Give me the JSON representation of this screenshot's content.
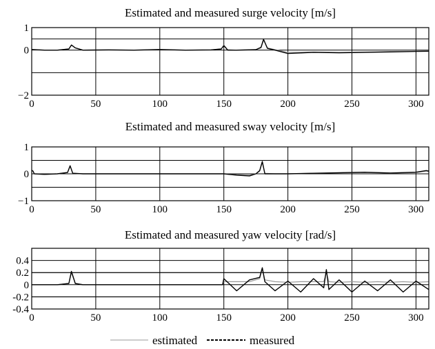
{
  "chart_data": [
    {
      "type": "line",
      "title": "Estimated and measured surge velocity [m/s]",
      "xlim": [
        0,
        310
      ],
      "ylim": [
        -2,
        1
      ],
      "x_ticks": [
        0,
        50,
        100,
        150,
        200,
        250,
        300
      ],
      "y_tick_labels": [
        "1",
        "0",
        "−2"
      ],
      "y_tick_values": [
        1,
        0,
        -2
      ],
      "grid_y": [
        0.5,
        -1
      ],
      "grid": true,
      "series": [
        {
          "name": "estimated",
          "color": "#9a9a9a",
          "x": [
            0,
            10,
            20,
            29,
            31,
            34,
            40,
            60,
            80,
            100,
            120,
            140,
            148,
            150,
            153,
            160,
            175,
            179,
            181,
            184,
            190,
            200,
            220,
            240,
            260,
            280,
            300,
            310
          ],
          "y": [
            0.02,
            0.0,
            0.0,
            0.05,
            0.22,
            0.1,
            0.0,
            0.01,
            0.0,
            0.02,
            0.0,
            0.01,
            0.05,
            0.22,
            0.02,
            0.0,
            0.02,
            0.1,
            0.45,
            0.1,
            0.02,
            -0.1,
            -0.08,
            -0.1,
            -0.08,
            -0.06,
            -0.05,
            -0.04
          ]
        },
        {
          "name": "measured",
          "color": "#000000",
          "x": [
            0,
            10,
            20,
            29,
            31,
            34,
            40,
            60,
            80,
            100,
            120,
            140,
            148,
            150,
            153,
            160,
            175,
            179,
            181,
            184,
            190,
            200,
            220,
            240,
            260,
            280,
            300,
            310
          ],
          "y": [
            0.03,
            0.0,
            0.0,
            0.05,
            0.23,
            0.1,
            0.0,
            0.01,
            0.0,
            0.03,
            0.0,
            0.01,
            0.05,
            0.2,
            0.0,
            0.0,
            0.02,
            0.12,
            0.48,
            0.08,
            0.0,
            -0.15,
            -0.1,
            -0.12,
            -0.1,
            -0.08,
            -0.06,
            -0.05
          ]
        }
      ]
    },
    {
      "type": "line",
      "title": "Estimated and measured sway velocity [m/s]",
      "xlim": [
        0,
        310
      ],
      "ylim": [
        -1,
        1
      ],
      "x_ticks": [
        0,
        50,
        100,
        150,
        200,
        250,
        300
      ],
      "y_tick_labels": [
        "1",
        "0",
        "−1"
      ],
      "y_tick_values": [
        1,
        0,
        -1
      ],
      "grid_y": [
        0.5,
        -0.5
      ],
      "grid": true,
      "series": [
        {
          "name": "estimated",
          "color": "#9a9a9a",
          "x": [
            0,
            1,
            2,
            10,
            20,
            28,
            30,
            32,
            40,
            60,
            80,
            100,
            120,
            140,
            150,
            160,
            170,
            175,
            178,
            180,
            182,
            190,
            200,
            220,
            240,
            260,
            280,
            300,
            308,
            310
          ],
          "y": [
            0.12,
            0.1,
            0.0,
            -0.02,
            0.0,
            0.05,
            0.28,
            0.02,
            0.0,
            0.0,
            0.0,
            0.0,
            0.0,
            0.0,
            0.0,
            -0.03,
            -0.05,
            0.0,
            0.1,
            0.42,
            0.02,
            0.0,
            0.0,
            0.02,
            0.03,
            0.05,
            0.02,
            0.05,
            0.1,
            0.08
          ]
        },
        {
          "name": "measured",
          "color": "#000000",
          "x": [
            0,
            1,
            2,
            10,
            20,
            28,
            30,
            32,
            40,
            60,
            80,
            100,
            120,
            140,
            150,
            160,
            170,
            175,
            178,
            180,
            182,
            190,
            200,
            220,
            240,
            260,
            280,
            300,
            308,
            310
          ],
          "y": [
            0.13,
            0.1,
            0.0,
            -0.02,
            0.0,
            0.05,
            0.3,
            0.02,
            0.0,
            0.0,
            0.0,
            0.0,
            0.0,
            0.0,
            0.0,
            -0.05,
            -0.08,
            0.0,
            0.12,
            0.46,
            0.0,
            0.0,
            0.0,
            0.02,
            0.04,
            0.06,
            0.03,
            0.06,
            0.12,
            0.1
          ]
        }
      ]
    },
    {
      "type": "line",
      "title": "Estimated and measured yaw velocity [rad/s]",
      "xlim": [
        0,
        310
      ],
      "ylim": [
        -0.4,
        0.6
      ],
      "x_ticks": [
        0,
        50,
        100,
        150,
        200,
        250,
        300
      ],
      "y_tick_labels": [
        "0.4",
        "0.2",
        "0",
        "-0.2",
        "-0.4"
      ],
      "y_tick_values": [
        0.4,
        0.2,
        0,
        -0.2,
        -0.4
      ],
      "grid_y": [
        0.2,
        -0.2
      ],
      "grid": true,
      "series": [
        {
          "name": "estimated",
          "color": "#9a9a9a",
          "x": [
            0,
            10,
            20,
            29,
            31,
            34,
            40,
            60,
            80,
            100,
            120,
            140,
            149,
            150,
            160,
            170,
            178,
            180,
            182,
            190,
            200,
            210,
            220,
            228,
            230,
            232,
            240,
            250,
            260,
            270,
            280,
            290,
            300,
            310
          ],
          "y": [
            0.0,
            0.0,
            0.0,
            0.02,
            0.2,
            0.02,
            0.0,
            0.0,
            0.0,
            0.0,
            0.0,
            0.0,
            0.0,
            0.05,
            0.05,
            0.05,
            0.1,
            0.26,
            0.08,
            0.05,
            0.04,
            0.05,
            0.05,
            0.05,
            0.2,
            0.05,
            0.04,
            0.05,
            0.04,
            0.05,
            0.04,
            0.05,
            0.04,
            0.05
          ]
        },
        {
          "name": "measured",
          "color": "#000000",
          "x": [
            0,
            10,
            20,
            29,
            31,
            34,
            40,
            60,
            80,
            100,
            120,
            140,
            149,
            150,
            160,
            170,
            178,
            180,
            182,
            190,
            200,
            210,
            220,
            228,
            230,
            232,
            240,
            250,
            260,
            270,
            280,
            290,
            300,
            310
          ],
          "y": [
            0.0,
            0.0,
            0.0,
            0.02,
            0.22,
            0.02,
            0.0,
            0.0,
            0.0,
            0.0,
            0.0,
            0.0,
            0.0,
            0.1,
            -0.1,
            0.08,
            0.12,
            0.28,
            0.05,
            -0.1,
            0.06,
            -0.12,
            0.1,
            -0.05,
            0.25,
            -0.08,
            0.08,
            -0.12,
            0.06,
            -0.1,
            0.08,
            -0.12,
            0.06,
            -0.08
          ]
        }
      ]
    }
  ],
  "legend": {
    "estimated_label": "estimated",
    "measured_label": "measured",
    "placement": "bottom-center"
  }
}
